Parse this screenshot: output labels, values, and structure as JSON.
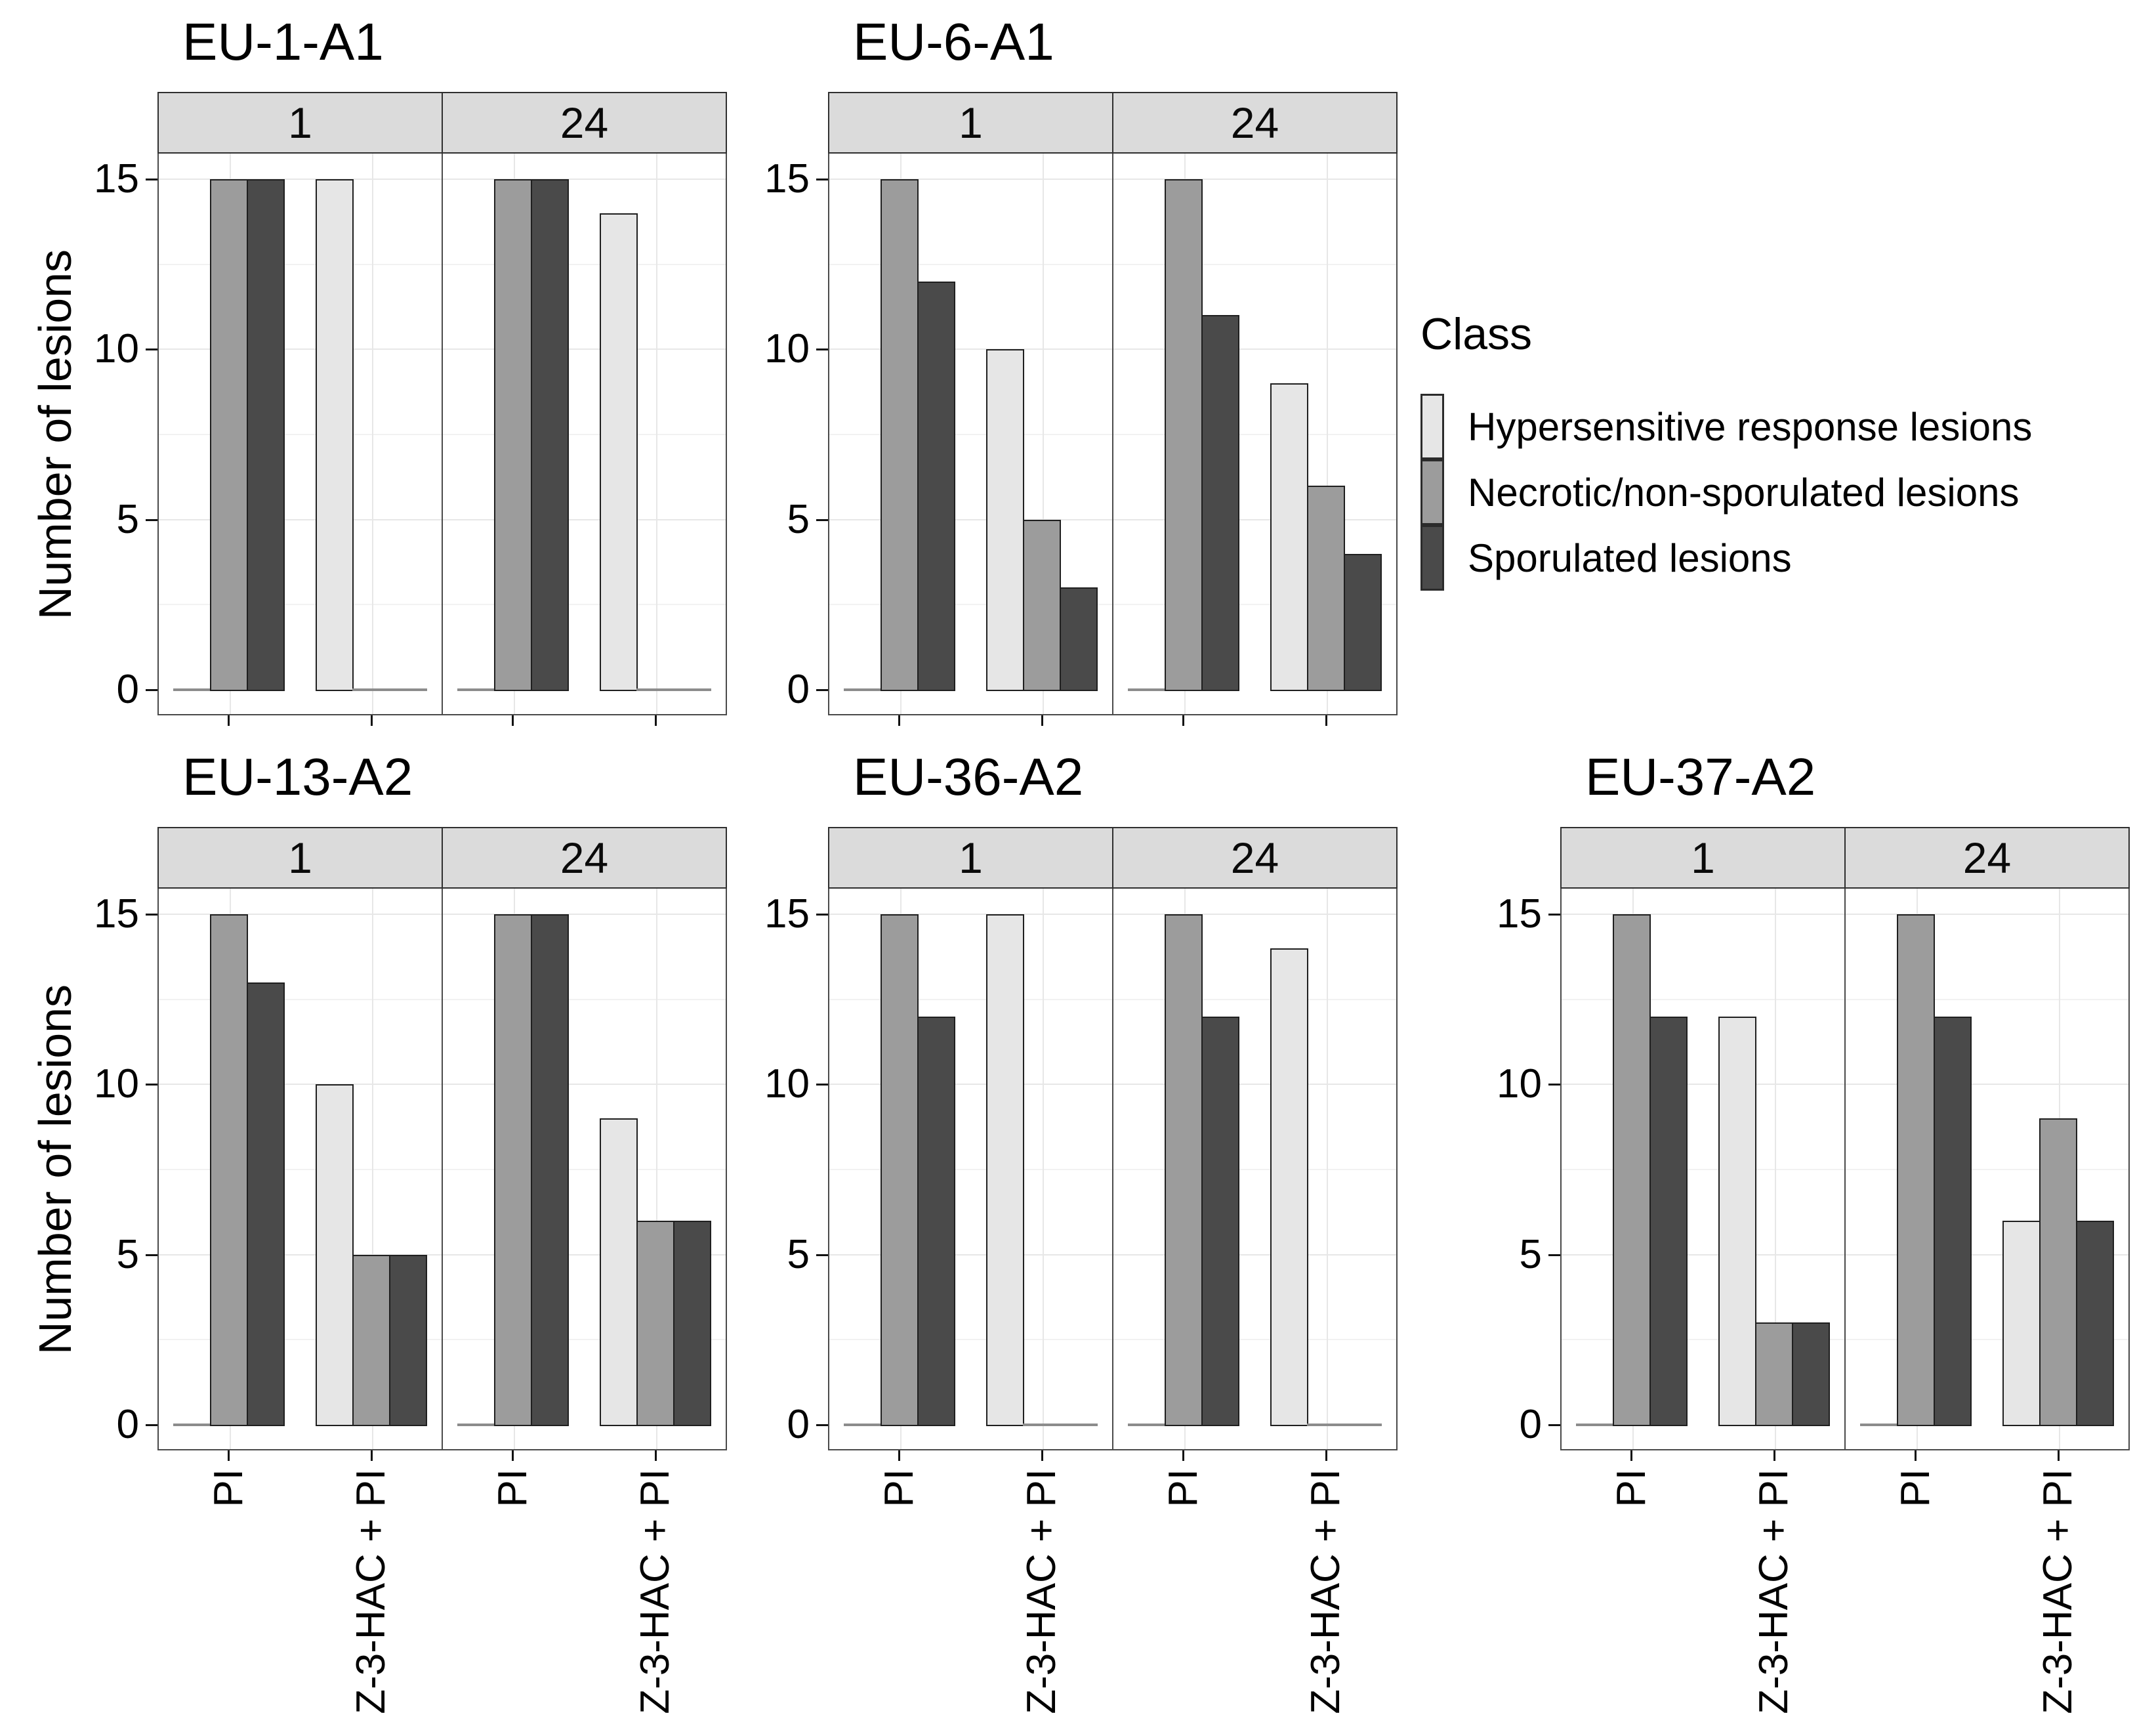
{
  "legend": {
    "title": "Class",
    "position": "right-of-top-row",
    "items": [
      {
        "label": "Hypersensitive response lesions",
        "color": "#E6E6E6"
      },
      {
        "label": "Necrotic/non-sporulated lesions",
        "color": "#9C9C9C"
      },
      {
        "label": "Sporulated lesions",
        "color": "#4A4A4A"
      }
    ]
  },
  "chart_data": {
    "type": "bar",
    "layout": "5 small-multiple dodged bar charts, each faceted into two panels",
    "ylabel": "Number of lesions",
    "xlabel": "",
    "y_ticks": [
      0,
      5,
      10,
      15
    ],
    "ylim": [
      0,
      15.75
    ],
    "grid": {
      "on": true,
      "major": [
        5,
        10,
        15
      ],
      "minor": [
        2.5,
        7.5,
        12.5
      ]
    },
    "facet_labels": [
      "1",
      "24"
    ],
    "categories": [
      "PI",
      "Z-3-HAC + PI"
    ],
    "classes": [
      {
        "name": "Hypersensitive response lesions",
        "color": "#E6E6E6"
      },
      {
        "name": "Necrotic/non-sporulated lesions",
        "color": "#9C9C9C"
      },
      {
        "name": "Sporulated lesions",
        "color": "#4A4A4A"
      }
    ],
    "charts": [
      {
        "title": "EU-1-A1",
        "facets": [
          {
            "label": "1",
            "groups": [
              {
                "category": "PI",
                "values": [
                  0,
                  15,
                  15
                ]
              },
              {
                "category": "Z-3-HAC + PI",
                "values": [
                  15,
                  0,
                  0
                ]
              }
            ]
          },
          {
            "label": "24",
            "groups": [
              {
                "category": "PI",
                "values": [
                  0,
                  15,
                  15
                ]
              },
              {
                "category": "Z-3-HAC + PI",
                "values": [
                  14,
                  0,
                  0
                ]
              }
            ]
          }
        ]
      },
      {
        "title": "EU-6-A1",
        "facets": [
          {
            "label": "1",
            "groups": [
              {
                "category": "PI",
                "values": [
                  0,
                  15,
                  12
                ]
              },
              {
                "category": "Z-3-HAC + PI",
                "values": [
                  10,
                  5,
                  3
                ]
              }
            ]
          },
          {
            "label": "24",
            "groups": [
              {
                "category": "PI",
                "values": [
                  0,
                  15,
                  11
                ]
              },
              {
                "category": "Z-3-HAC + PI",
                "values": [
                  9,
                  6,
                  4
                ]
              }
            ]
          }
        ]
      },
      {
        "title": "EU-13-A2",
        "facets": [
          {
            "label": "1",
            "groups": [
              {
                "category": "PI",
                "values": [
                  0,
                  15,
                  13
                ]
              },
              {
                "category": "Z-3-HAC + PI",
                "values": [
                  10,
                  5,
                  5
                ]
              }
            ]
          },
          {
            "label": "24",
            "groups": [
              {
                "category": "PI",
                "values": [
                  0,
                  15,
                  15
                ]
              },
              {
                "category": "Z-3-HAC + PI",
                "values": [
                  9,
                  6,
                  6
                ]
              }
            ]
          }
        ]
      },
      {
        "title": "EU-36-A2",
        "facets": [
          {
            "label": "1",
            "groups": [
              {
                "category": "PI",
                "values": [
                  0,
                  15,
                  12
                ]
              },
              {
                "category": "Z-3-HAC + PI",
                "values": [
                  15,
                  0,
                  0
                ]
              }
            ]
          },
          {
            "label": "24",
            "groups": [
              {
                "category": "PI",
                "values": [
                  0,
                  15,
                  12
                ]
              },
              {
                "category": "Z-3-HAC + PI",
                "values": [
                  14,
                  0,
                  0
                ]
              }
            ]
          }
        ]
      },
      {
        "title": "EU-37-A2",
        "facets": [
          {
            "label": "1",
            "groups": [
              {
                "category": "PI",
                "values": [
                  0,
                  15,
                  12
                ]
              },
              {
                "category": "Z-3-HAC + PI",
                "values": [
                  12,
                  3,
                  3
                ]
              }
            ]
          },
          {
            "label": "24",
            "groups": [
              {
                "category": "PI",
                "values": [
                  0,
                  15,
                  12
                ]
              },
              {
                "category": "Z-3-HAC + PI",
                "values": [
                  6,
                  9,
                  6
                ]
              }
            ]
          }
        ]
      }
    ]
  }
}
